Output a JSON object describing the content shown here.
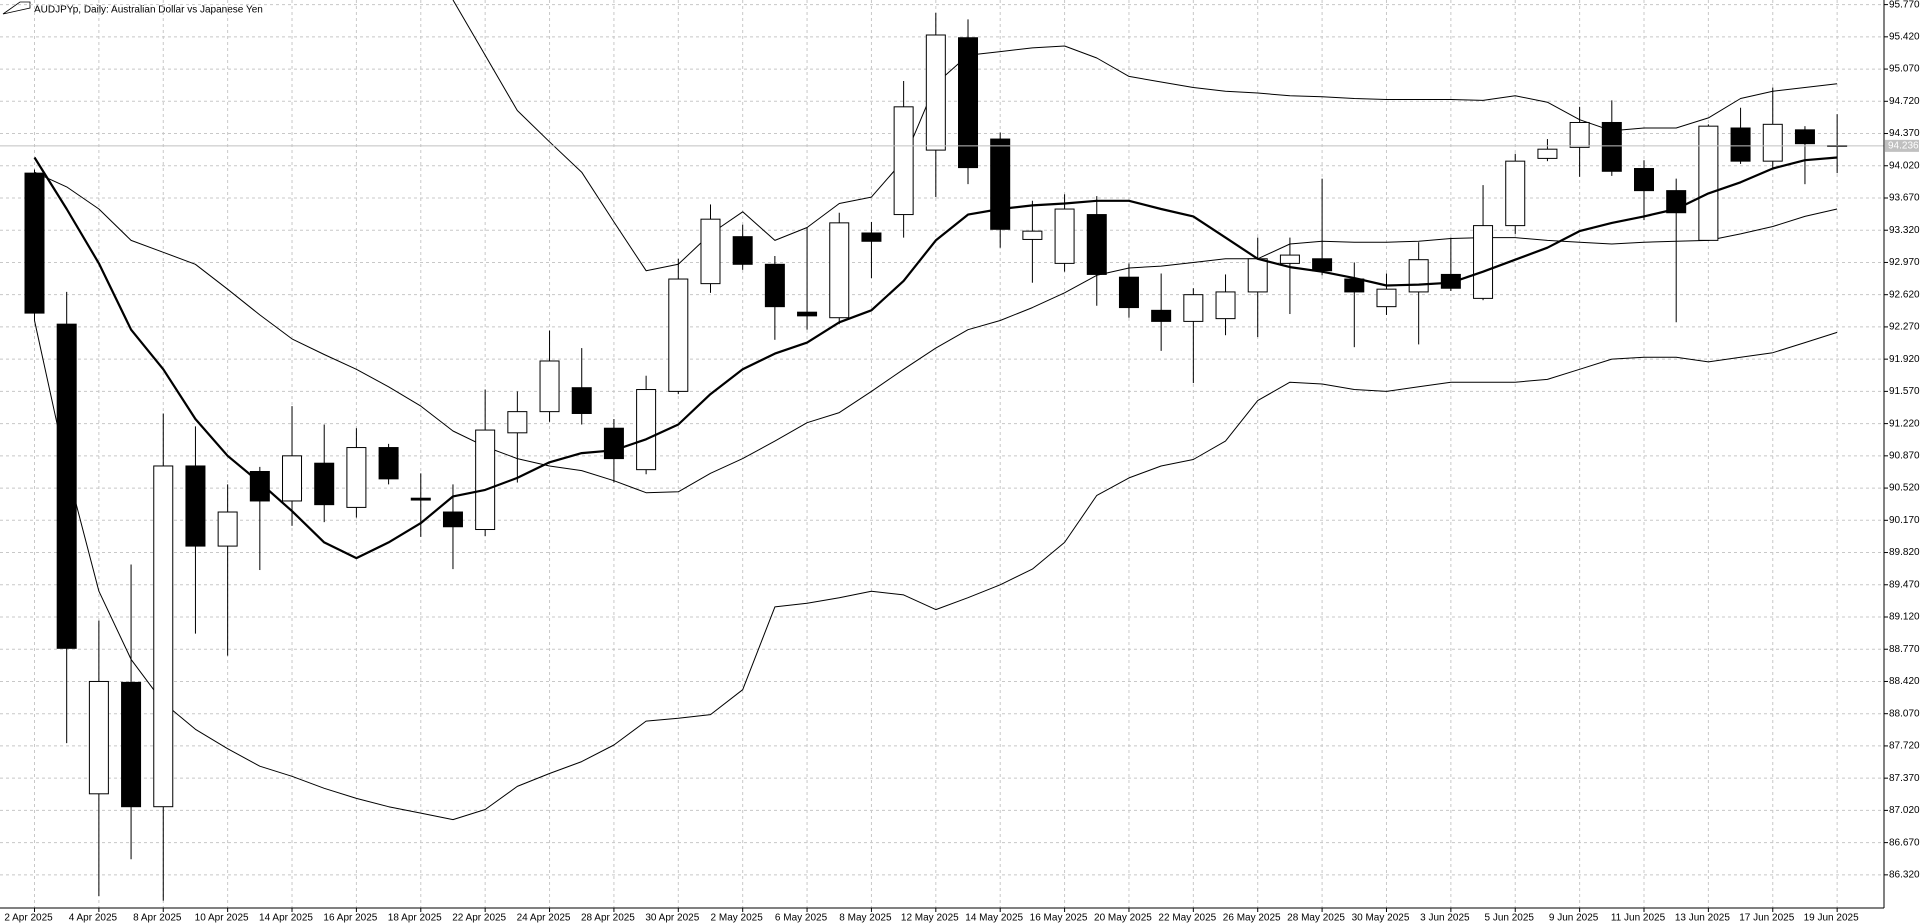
{
  "chart_data": {
    "type": "candlestick",
    "title": "AUDJPYp, Daily:  Australian Dollar vs Japanese Yen",
    "categories": [
      "2 Apr 2025",
      null,
      "4 Apr 2025",
      null,
      "8 Apr 2025",
      null,
      "10 Apr 2025",
      null,
      "14 Apr 2025",
      null,
      "16 Apr 2025",
      null,
      "18 Apr 2025",
      null,
      "22 Apr 2025",
      null,
      "24 Apr 2025",
      null,
      "28 Apr 2025",
      null,
      "30 Apr 2025",
      null,
      "2 May 2025",
      null,
      "6 May 2025",
      null,
      "8 May 2025",
      null,
      "12 May 2025",
      null,
      "14 May 2025",
      null,
      "16 May 2025",
      null,
      "20 May 2025",
      null,
      "22 May 2025",
      null,
      "26 May 2025",
      null,
      "28 May 2025",
      null,
      "30 May 2025",
      null,
      "3 Jun 2025",
      null,
      "5 Jun 2025",
      null,
      "9 Jun 2025",
      null,
      "11 Jun 2025",
      null,
      "13 Jun 2025",
      null,
      "17 Jun 2025",
      null,
      "19 Jun 2025"
    ],
    "open": [
      93.94,
      92.3,
      87.2,
      88.41,
      87.06,
      90.76,
      89.89,
      90.7,
      90.38,
      90.79,
      90.31,
      90.96,
      90.41,
      90.26,
      90.07,
      91.12,
      91.35,
      91.61,
      91.17,
      90.72,
      91.57,
      92.74,
      93.25,
      92.95,
      92.43,
      92.37,
      93.29,
      93.49,
      94.19,
      95.41,
      94.31,
      93.22,
      92.96,
      93.49,
      92.81,
      92.45,
      92.33,
      92.36,
      92.65,
      92.96,
      93.01,
      92.79,
      92.49,
      92.65,
      92.84,
      92.58,
      93.37,
      94.1,
      94.22,
      94.49,
      93.99,
      93.75,
      93.21,
      94.43,
      94.07,
      94.41,
      94.24
    ],
    "high": [
      93.98,
      92.65,
      89.08,
      89.69,
      91.33,
      91.19,
      90.56,
      90.75,
      91.41,
      91.21,
      91.17,
      91.0,
      90.68,
      90.56,
      91.59,
      91.57,
      92.23,
      92.04,
      91.27,
      91.74,
      93.01,
      93.6,
      93.38,
      93.04,
      93.35,
      93.51,
      93.41,
      94.94,
      95.68,
      95.61,
      94.38,
      93.64,
      93.71,
      93.69,
      92.96,
      92.85,
      92.69,
      92.84,
      93.24,
      93.24,
      93.88,
      92.97,
      92.85,
      93.19,
      93.24,
      93.81,
      94.15,
      94.31,
      94.66,
      94.73,
      94.08,
      93.88,
      94.47,
      94.65,
      94.87,
      94.45,
      94.58
    ],
    "low": [
      92.34,
      87.75,
      86.09,
      86.49,
      86.04,
      88.94,
      88.7,
      89.63,
      90.11,
      90.15,
      90.2,
      90.56,
      89.99,
      89.64,
      90.0,
      90.58,
      91.24,
      91.21,
      90.58,
      90.67,
      91.54,
      92.64,
      92.89,
      92.13,
      92.24,
      92.3,
      92.8,
      93.24,
      93.68,
      93.82,
      93.13,
      92.75,
      92.87,
      92.5,
      92.37,
      92.01,
      91.66,
      92.18,
      92.16,
      92.41,
      92.83,
      92.05,
      92.4,
      92.08,
      92.66,
      92.56,
      93.28,
      94.07,
      93.9,
      93.91,
      93.43,
      92.32,
      93.21,
      94.04,
      93.99,
      93.82,
      93.94
    ],
    "close": [
      92.42,
      88.78,
      88.42,
      87.06,
      90.76,
      89.89,
      90.26,
      90.38,
      90.87,
      90.34,
      90.96,
      90.62,
      90.39,
      90.1,
      91.15,
      91.35,
      91.9,
      91.33,
      90.84,
      91.59,
      92.79,
      93.44,
      92.95,
      92.49,
      92.39,
      93.4,
      93.2,
      94.66,
      95.44,
      94.0,
      93.33,
      93.31,
      93.55,
      92.84,
      92.48,
      92.33,
      92.62,
      92.65,
      93.01,
      93.05,
      92.88,
      92.65,
      92.68,
      93.0,
      92.69,
      93.37,
      94.07,
      94.2,
      94.49,
      93.96,
      93.75,
      93.51,
      94.45,
      94.07,
      94.47,
      94.26,
      94.24
    ],
    "moving_average": [
      94.11,
      93.55,
      92.96,
      92.24,
      91.81,
      91.27,
      90.87,
      90.58,
      90.27,
      89.93,
      89.76,
      89.93,
      90.14,
      90.43,
      90.5,
      90.63,
      90.8,
      90.9,
      90.93,
      91.05,
      91.21,
      91.54,
      91.81,
      91.98,
      92.1,
      92.32,
      92.45,
      92.77,
      93.21,
      93.49,
      93.55,
      93.59,
      93.61,
      93.64,
      93.64,
      93.55,
      93.47,
      93.24,
      93.01,
      92.92,
      92.87,
      92.8,
      92.72,
      92.73,
      92.75,
      92.87,
      93.0,
      93.13,
      93.31,
      93.4,
      93.47,
      93.55,
      93.72,
      93.84,
      93.99,
      94.08,
      94.11
    ],
    "bands": {
      "upper": [
        null,
        null,
        null,
        null,
        null,
        null,
        null,
        null,
        null,
        null,
        null,
        null,
        null,
        95.82,
        95.22,
        94.62,
        94.28,
        93.95,
        93.41,
        92.88,
        92.95,
        93.28,
        93.52,
        93.21,
        93.35,
        93.61,
        93.68,
        94.08,
        94.91,
        95.22,
        95.26,
        95.3,
        95.32,
        95.19,
        94.99,
        94.93,
        94.87,
        94.83,
        94.81,
        94.78,
        94.77,
        94.75,
        94.74,
        94.74,
        94.74,
        94.73,
        94.78,
        94.71,
        94.52,
        94.4,
        94.43,
        94.43,
        94.54,
        94.75,
        94.83,
        94.87,
        94.91
      ],
      "middle": [
        93.95,
        93.79,
        93.55,
        93.21,
        93.08,
        92.95,
        92.68,
        92.4,
        92.14,
        91.97,
        91.81,
        91.62,
        91.41,
        91.14,
        90.97,
        90.84,
        90.76,
        90.71,
        90.6,
        90.47,
        90.48,
        90.68,
        90.84,
        91.03,
        91.23,
        91.34,
        91.57,
        91.81,
        92.04,
        92.24,
        92.34,
        92.48,
        92.64,
        92.83,
        92.91,
        92.93,
        92.97,
        93.01,
        93.01,
        93.17,
        93.2,
        93.19,
        93.19,
        93.2,
        93.23,
        93.24,
        93.24,
        93.21,
        93.19,
        93.17,
        93.19,
        93.2,
        93.21,
        93.28,
        93.36,
        93.47,
        93.55
      ],
      "lower": [
        92.34,
        90.74,
        89.4,
        88.66,
        88.19,
        87.9,
        87.69,
        87.5,
        87.39,
        87.26,
        87.15,
        87.06,
        86.99,
        86.92,
        87.03,
        87.28,
        87.42,
        87.55,
        87.73,
        87.99,
        88.02,
        88.06,
        88.33,
        89.23,
        89.27,
        89.33,
        89.4,
        89.36,
        89.2,
        89.33,
        89.47,
        89.64,
        89.93,
        90.44,
        90.63,
        90.76,
        90.83,
        91.03,
        91.47,
        91.67,
        91.65,
        91.59,
        91.57,
        91.62,
        91.67,
        91.67,
        91.67,
        91.7,
        91.81,
        91.92,
        91.94,
        91.94,
        91.89,
        91.94,
        91.99,
        92.1,
        92.21
      ]
    },
    "current_price": 94.236,
    "ylim": [
      85.96,
      95.82
    ],
    "yticks": [
      {
        "value": 95.77,
        "label": "95.770"
      },
      {
        "value": 95.42,
        "label": "95.420"
      },
      {
        "value": 95.07,
        "label": "95.070"
      },
      {
        "value": 94.72,
        "label": "94.720"
      },
      {
        "value": 94.37,
        "label": "94.370"
      },
      {
        "value": 94.02,
        "label": "94.020"
      },
      {
        "value": 93.67,
        "label": "93.670"
      },
      {
        "value": 93.32,
        "label": "93.320"
      },
      {
        "value": 92.97,
        "label": "92.970"
      },
      {
        "value": 92.62,
        "label": "92.620"
      },
      {
        "value": 92.27,
        "label": "92.270"
      },
      {
        "value": 91.92,
        "label": "91.920"
      },
      {
        "value": 91.57,
        "label": "91.570"
      },
      {
        "value": 91.22,
        "label": "91.220"
      },
      {
        "value": 90.87,
        "label": "90.870"
      },
      {
        "value": 90.52,
        "label": "90.520"
      },
      {
        "value": 90.17,
        "label": "90.170"
      },
      {
        "value": 89.82,
        "label": "89.820"
      },
      {
        "value": 89.47,
        "label": "89.470"
      },
      {
        "value": 89.12,
        "label": "89.120"
      },
      {
        "value": 88.77,
        "label": "88.770"
      },
      {
        "value": 88.42,
        "label": "88.420"
      },
      {
        "value": 88.07,
        "label": "88.070"
      },
      {
        "value": 87.72,
        "label": "87.720"
      },
      {
        "value": 87.37,
        "label": "87.370"
      },
      {
        "value": 87.02,
        "label": "87.020"
      },
      {
        "value": 86.67,
        "label": "86.670"
      },
      {
        "value": 86.32,
        "label": "86.320"
      }
    ],
    "grid": true,
    "up_color": "#ffffff",
    "down_color": "#000000",
    "line_color": "#000000",
    "grid_color": "#c8c8c8",
    "price_line_color": "#c0c0c0"
  }
}
